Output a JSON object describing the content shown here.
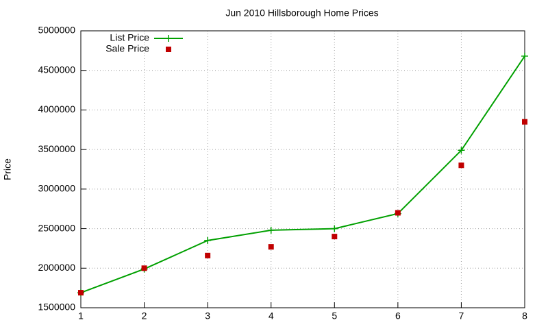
{
  "chart_data": {
    "type": "line",
    "title": "Jun 2010 Hillsborough Home Prices",
    "y_label": "Price",
    "x": [
      1,
      2,
      3,
      4,
      5,
      6,
      7,
      8
    ],
    "series": [
      {
        "name": "List Price",
        "color": "#00a000",
        "style": "linespoints",
        "values": [
          1690000,
          1990000,
          2350000,
          2480000,
          2500000,
          2690000,
          3490000,
          4680000
        ]
      },
      {
        "name": "Sale Price",
        "color": "#c00000",
        "style": "points",
        "values": [
          1690000,
          2000000,
          2160000,
          2270000,
          2400000,
          2700000,
          3300000,
          3850000
        ]
      }
    ],
    "xlim": [
      1,
      8
    ],
    "xticks": [
      1,
      2,
      3,
      4,
      5,
      6,
      7,
      8
    ],
    "ylim": [
      1500000,
      5000000
    ],
    "yticks": [
      1500000,
      2000000,
      2500000,
      3000000,
      3500000,
      4000000,
      4500000,
      5000000
    ],
    "grid": true,
    "legend": "top-left"
  }
}
